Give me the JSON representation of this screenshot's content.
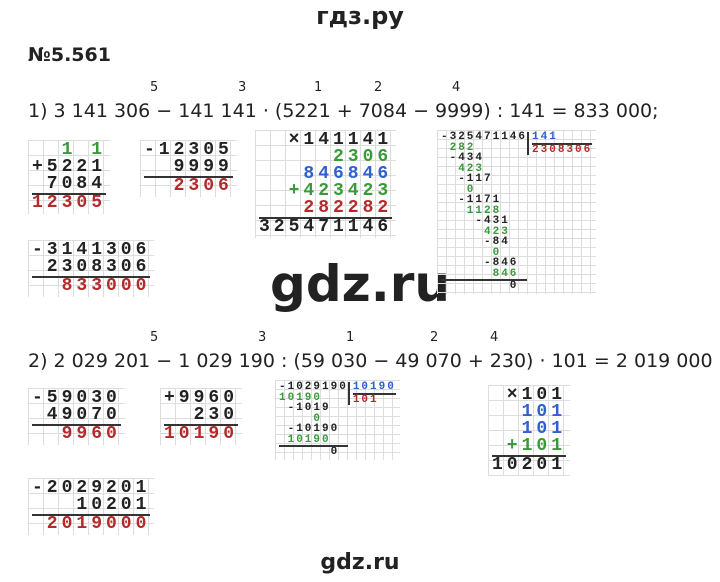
{
  "header": {
    "title": "гдз.ру"
  },
  "problem_number": "№5.561",
  "parts": [
    {
      "order_marks": [
        "5",
        "3",
        "1",
        "2",
        "4"
      ],
      "expression": "1) 3 141 306 − 141 141 · (5221 + 7084 − 9999) : 141 = 833 000;",
      "calculations": [
        {
          "rows": [
            {
              "text": "1 1",
              "color": "#3a9a3a"
            },
            {
              "text": "+5221",
              "color": "#222222"
            },
            {
              "text": "7084",
              "color": "#222222"
            },
            {
              "text": "12305",
              "color": "#b22a2a"
            }
          ]
        },
        {
          "rows": [
            {
              "text": "-12305",
              "color": "#222222"
            },
            {
              "text": "9999",
              "color": "#222222"
            },
            {
              "text": "2306",
              "color": "#b22a2a"
            }
          ]
        },
        {
          "rows": [
            {
              "text": "×141141",
              "color": "#222222"
            },
            {
              "text": "2306",
              "color": "#3a9a3a"
            },
            {
              "text": "846846",
              "color": "#2f5fd0"
            },
            {
              "text": "+423423",
              "color": "#3a9a3a"
            },
            {
              "text": "282282",
              "color": "#b22a2a"
            },
            {
              "text": "325471146",
              "color": "#222222"
            }
          ]
        },
        {
          "divisor": "141",
          "quotient": "2308306",
          "rows": [
            {
              "text": "-325471146",
              "color": "#222222"
            },
            {
              "text": "282",
              "color": "#3a9a3a"
            },
            {
              "text": "-434",
              "color": "#222222"
            },
            {
              "text": "423",
              "color": "#3a9a3a"
            },
            {
              "text": "-117",
              "color": "#222222"
            },
            {
              "text": "0",
              "color": "#3a9a3a"
            },
            {
              "text": "-1171",
              "color": "#222222"
            },
            {
              "text": "1128",
              "color": "#3a9a3a"
            },
            {
              "text": "-431",
              "color": "#222222"
            },
            {
              "text": "423",
              "color": "#3a9a3a"
            },
            {
              "text": "-84",
              "color": "#222222"
            },
            {
              "text": "0",
              "color": "#3a9a3a"
            },
            {
              "text": "-846",
              "color": "#222222"
            },
            {
              "text": "846",
              "color": "#3a9a3a"
            },
            {
              "text": "0",
              "color": "#222222"
            }
          ]
        },
        {
          "rows": [
            {
              "text": "-3141306",
              "color": "#222222"
            },
            {
              "text": "2308306",
              "color": "#222222"
            },
            {
              "text": "833000",
              "color": "#b22a2a"
            }
          ]
        }
      ]
    },
    {
      "order_marks": [
        "5",
        "3",
        "1",
        "2",
        "4"
      ],
      "expression": "2) 2 029 201 − 1 029 190 : (59 030 − 49 070 + 230) · 101 = 2 019 000",
      "calculations": [
        {
          "rows": [
            {
              "text": "-59030",
              "color": "#222222"
            },
            {
              "text": "49070",
              "color": "#222222"
            },
            {
              "text": "9960",
              "color": "#b22a2a"
            }
          ]
        },
        {
          "rows": [
            {
              "text": "+9960",
              "color": "#222222"
            },
            {
              "text": "230",
              "color": "#222222"
            },
            {
              "text": "10190",
              "color": "#b22a2a"
            }
          ]
        },
        {
          "divisor": "10190",
          "quotient": "101",
          "rows": [
            {
              "text": "-1029190",
              "color": "#222222"
            },
            {
              "text": "10190",
              "color": "#3a9a3a"
            },
            {
              "text": "-1019",
              "color": "#222222"
            },
            {
              "text": "0",
              "color": "#3a9a3a"
            },
            {
              "text": "-10190",
              "color": "#222222"
            },
            {
              "text": "10190",
              "color": "#3a9a3a"
            },
            {
              "text": "0",
              "color": "#222222"
            }
          ]
        },
        {
          "rows": [
            {
              "text": "×101",
              "color": "#222222"
            },
            {
              "text": "101",
              "color": "#2f5fd0"
            },
            {
              "text": "101",
              "color": "#2f5fd0"
            },
            {
              "text": "+101",
              "color": "#3a9a3a"
            },
            {
              "text": "10201",
              "color": "#222222"
            }
          ]
        },
        {
          "rows": [
            {
              "text": "-2029201",
              "color": "#222222"
            },
            {
              "text": "10201",
              "color": "#222222"
            },
            {
              "text": "2019000",
              "color": "#b22a2a"
            }
          ]
        }
      ]
    }
  ],
  "watermark": "gdz.ru",
  "footer": "gdz.ru"
}
